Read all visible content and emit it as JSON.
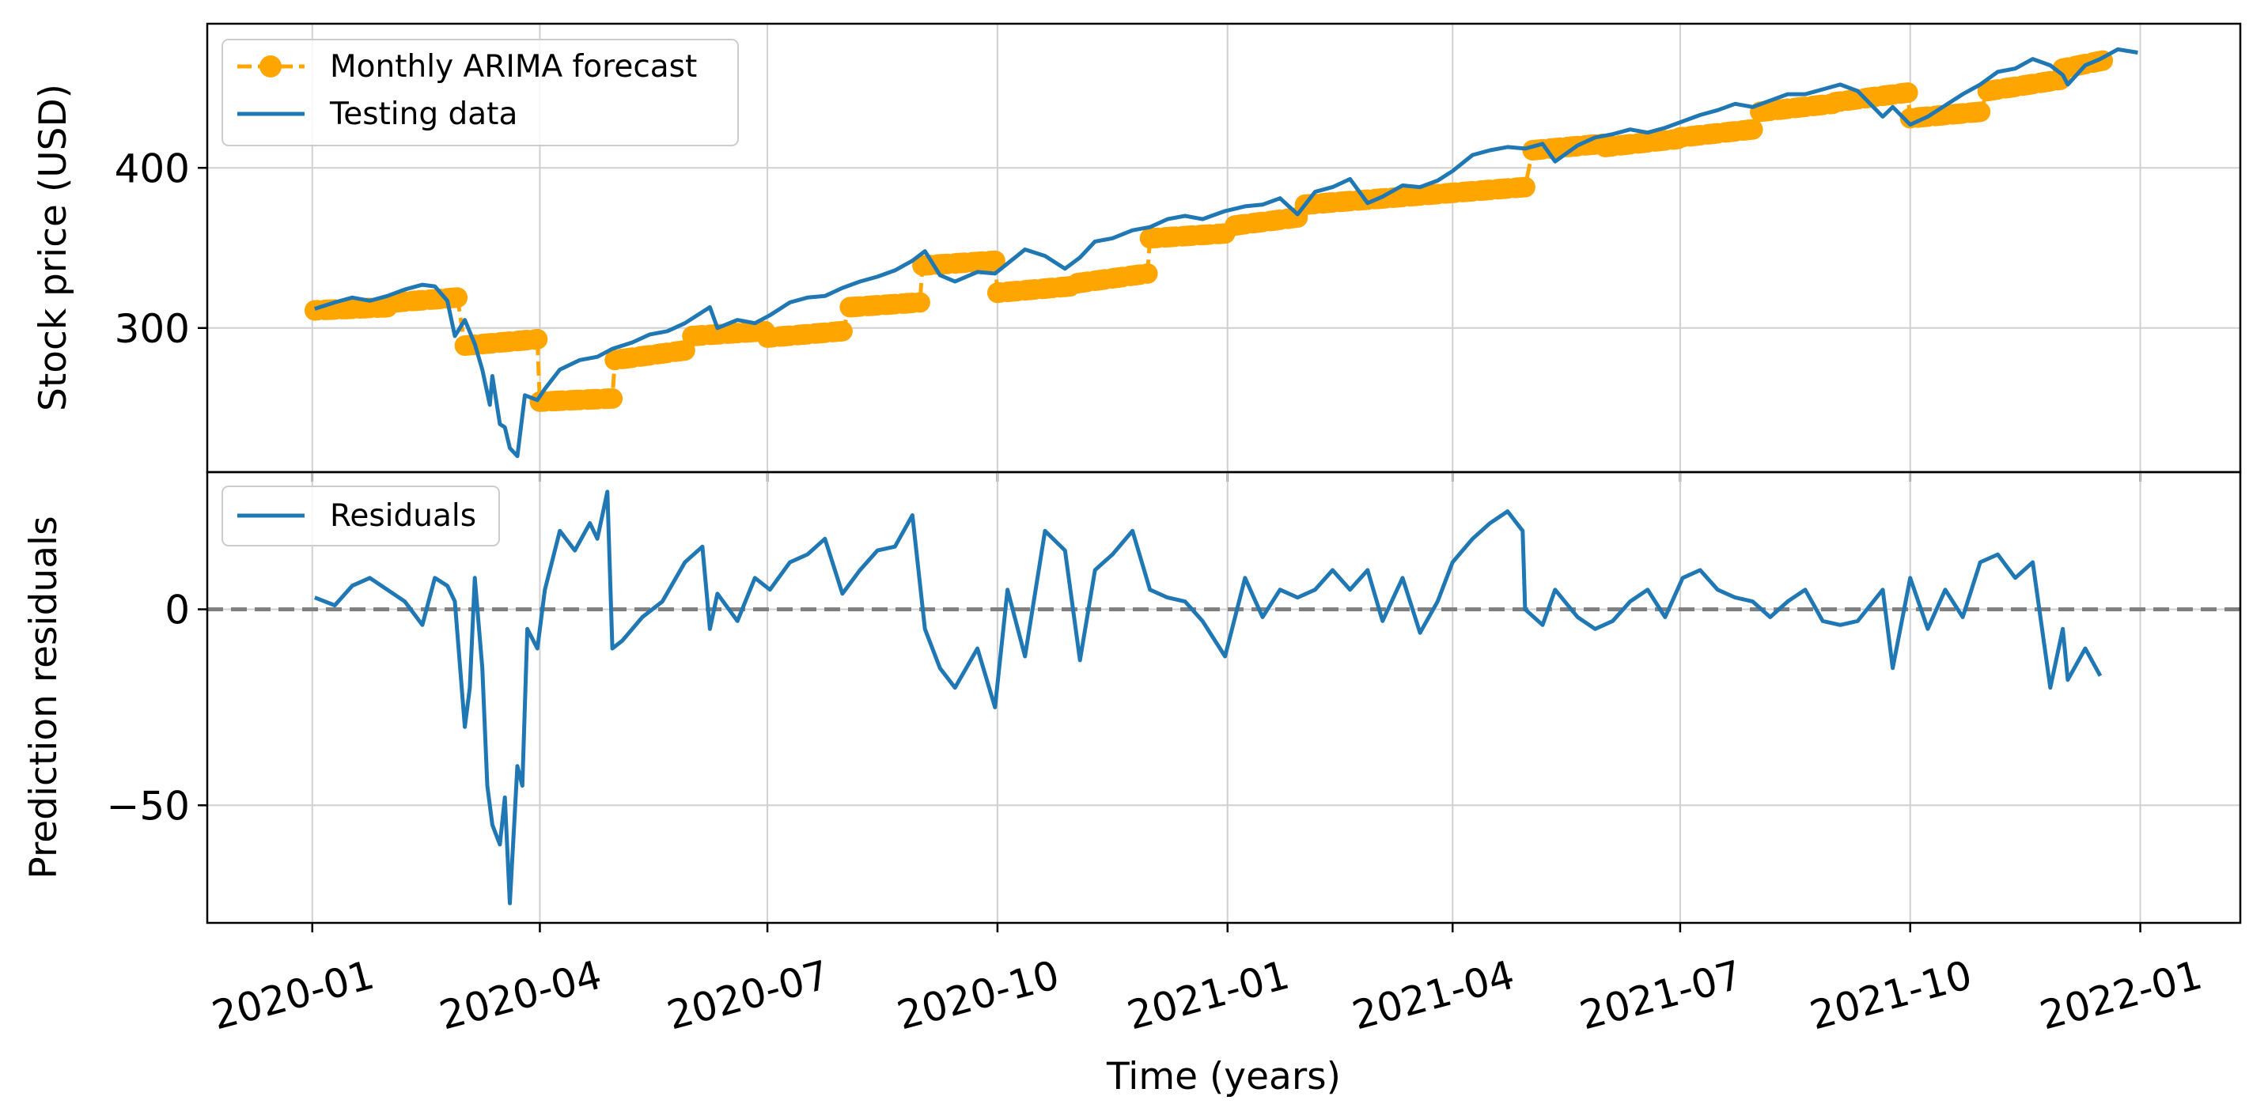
{
  "chart_data": [
    {
      "type": "line",
      "xlabel": "",
      "ylabel": "Stock price (USD)",
      "ylim": [
        210,
        490
      ],
      "y_ticks": [
        "300",
        "400"
      ],
      "x_range": [
        "2019-11-20",
        "2022-02-10"
      ],
      "grid": true,
      "legend": "top-left",
      "series": [
        {
          "name": "Monthly ARIMA forecast",
          "style": "dashed-with-circle-markers",
          "color": "#ffa500",
          "segments": [
            {
              "x": [
                "2020-01-02",
                "2020-01-31"
              ],
              "y": [
                311,
                313
              ]
            },
            {
              "x": [
                "2020-02-03",
                "2020-02-28"
              ],
              "y": [
                316,
                319
              ]
            },
            {
              "x": [
                "2020-03-02",
                "2020-03-31"
              ],
              "y": [
                289,
                293
              ]
            },
            {
              "x": [
                "2020-04-01",
                "2020-04-30"
              ],
              "y": [
                254,
                256
              ]
            },
            {
              "x": [
                "2020-05-01",
                "2020-05-29"
              ],
              "y": [
                280,
                286
              ]
            },
            {
              "x": [
                "2020-06-01",
                "2020-06-30"
              ],
              "y": [
                295,
                298
              ]
            },
            {
              "x": [
                "2020-07-01",
                "2020-07-31"
              ],
              "y": [
                294,
                298
              ]
            },
            {
              "x": [
                "2020-08-03",
                "2020-08-31"
              ],
              "y": [
                313,
                316
              ]
            },
            {
              "x": [
                "2020-09-01",
                "2020-09-30"
              ],
              "y": [
                339,
                342
              ]
            },
            {
              "x": [
                "2020-10-01",
                "2020-10-30"
              ],
              "y": [
                322,
                326
              ]
            },
            {
              "x": [
                "2020-11-02",
                "2020-11-30"
              ],
              "y": [
                328,
                334
              ]
            },
            {
              "x": [
                "2020-12-01",
                "2020-12-31"
              ],
              "y": [
                356,
                359
              ]
            },
            {
              "x": [
                "2021-01-04",
                "2021-01-29"
              ],
              "y": [
                364,
                369
              ]
            },
            {
              "x": [
                "2021-02-01",
                "2021-04-30"
              ],
              "y": [
                377,
                388
              ]
            },
            {
              "x": [
                "2021-05-03",
                "2021-05-31"
              ],
              "y": [
                411,
                415
              ]
            },
            {
              "x": [
                "2021-06-01",
                "2021-06-30"
              ],
              "y": [
                413,
                418
              ]
            },
            {
              "x": [
                "2021-07-01",
                "2021-07-30"
              ],
              "y": [
                419,
                424
              ]
            },
            {
              "x": [
                "2021-08-02",
                "2021-08-31"
              ],
              "y": [
                435,
                440
              ]
            },
            {
              "x": [
                "2021-09-01",
                "2021-09-30"
              ],
              "y": [
                441,
                447
              ]
            },
            {
              "x": [
                "2021-10-01",
                "2021-10-29"
              ],
              "y": [
                431,
                435
              ]
            },
            {
              "x": [
                "2021-11-01",
                "2021-11-30"
              ],
              "y": [
                448,
                455
              ]
            },
            {
              "x": [
                "2021-12-01",
                "2021-12-17"
              ],
              "y": [
                462,
                467
              ]
            }
          ]
        },
        {
          "name": "Testing data",
          "style": "solid",
          "color": "#1f77b4",
          "x": [
            "2020-01-02",
            "2020-01-10",
            "2020-01-17",
            "2020-01-24",
            "2020-01-31",
            "2020-02-07",
            "2020-02-14",
            "2020-02-19",
            "2020-02-24",
            "2020-02-27",
            "2020-03-02",
            "2020-03-06",
            "2020-03-09",
            "2020-03-12",
            "2020-03-13",
            "2020-03-16",
            "2020-03-18",
            "2020-03-20",
            "2020-03-23",
            "2020-03-26",
            "2020-03-31",
            "2020-04-03",
            "2020-04-09",
            "2020-04-17",
            "2020-04-24",
            "2020-04-30",
            "2020-05-08",
            "2020-05-15",
            "2020-05-22",
            "2020-05-29",
            "2020-06-05",
            "2020-06-08",
            "2020-06-11",
            "2020-06-19",
            "2020-06-26",
            "2020-07-02",
            "2020-07-10",
            "2020-07-17",
            "2020-07-24",
            "2020-07-31",
            "2020-08-07",
            "2020-08-14",
            "2020-08-21",
            "2020-08-28",
            "2020-09-02",
            "2020-09-08",
            "2020-09-14",
            "2020-09-23",
            "2020-09-30",
            "2020-10-12",
            "2020-10-20",
            "2020-10-28",
            "2020-11-03",
            "2020-11-09",
            "2020-11-16",
            "2020-11-24",
            "2020-12-01",
            "2020-12-08",
            "2020-12-15",
            "2020-12-22",
            "2020-12-31",
            "2021-01-08",
            "2021-01-15",
            "2021-01-22",
            "2021-01-29",
            "2021-02-05",
            "2021-02-12",
            "2021-02-19",
            "2021-02-26",
            "2021-03-04",
            "2021-03-12",
            "2021-03-19",
            "2021-03-26",
            "2021-04-01",
            "2021-04-09",
            "2021-04-16",
            "2021-04-23",
            "2021-04-30",
            "2021-05-07",
            "2021-05-12",
            "2021-05-21",
            "2021-05-28",
            "2021-06-04",
            "2021-06-11",
            "2021-06-18",
            "2021-06-25",
            "2021-07-02",
            "2021-07-09",
            "2021-07-16",
            "2021-07-23",
            "2021-07-30",
            "2021-08-06",
            "2021-08-13",
            "2021-08-20",
            "2021-08-27",
            "2021-09-03",
            "2021-09-10",
            "2021-09-20",
            "2021-09-24",
            "2021-10-01",
            "2021-10-08",
            "2021-10-15",
            "2021-10-22",
            "2021-10-29",
            "2021-11-05",
            "2021-11-12",
            "2021-11-19",
            "2021-11-26",
            "2021-12-01",
            "2021-12-03",
            "2021-12-10",
            "2021-12-16",
            "2021-12-23",
            "2021-12-31"
          ],
          "y": [
            312,
            316,
            319,
            317,
            320,
            324,
            327,
            326,
            317,
            295,
            305,
            290,
            274,
            252,
            270,
            240,
            238,
            225,
            220,
            258,
            255,
            262,
            274,
            280,
            282,
            287,
            291,
            296,
            298,
            303,
            310,
            313,
            300,
            305,
            303,
            308,
            316,
            319,
            320,
            325,
            329,
            332,
            336,
            342,
            348,
            333,
            329,
            335,
            334,
            349,
            345,
            337,
            344,
            354,
            356,
            361,
            363,
            368,
            370,
            368,
            373,
            376,
            377,
            381,
            371,
            385,
            388,
            393,
            378,
            382,
            389,
            388,
            392,
            398,
            408,
            411,
            413,
            412,
            415,
            404,
            414,
            419,
            421,
            424,
            422,
            425,
            429,
            433,
            436,
            440,
            438,
            442,
            446,
            446,
            449,
            452,
            448,
            432,
            438,
            427,
            432,
            439,
            446,
            452,
            460,
            462,
            468,
            464,
            458,
            452,
            464,
            468,
            474,
            472
          ]
        }
      ]
    },
    {
      "type": "line",
      "xlabel": "Time (years)",
      "ylabel": "Prediction residuals",
      "ylim": [
        -80,
        35
      ],
      "y_ticks": [
        "−50",
        "0"
      ],
      "x_ticks": [
        "2020-01",
        "2020-04",
        "2020-07",
        "2020-10",
        "2021-01",
        "2021-04",
        "2021-07",
        "2021-10",
        "2022-01"
      ],
      "x_range": [
        "2019-11-20",
        "2022-02-10"
      ],
      "grid": true,
      "legend": "top-left",
      "reference_line": {
        "y": 0,
        "style": "dashed",
        "color": "#808080"
      },
      "series": [
        {
          "name": "Residuals",
          "color": "#1f77b4",
          "x": [
            "2020-01-02",
            "2020-01-10",
            "2020-01-17",
            "2020-01-24",
            "2020-01-31",
            "2020-02-07",
            "2020-02-14",
            "2020-02-19",
            "2020-02-24",
            "2020-02-27",
            "2020-03-02",
            "2020-03-04",
            "2020-03-06",
            "2020-03-09",
            "2020-03-11",
            "2020-03-13",
            "2020-03-16",
            "2020-03-18",
            "2020-03-20",
            "2020-03-23",
            "2020-03-25",
            "2020-03-27",
            "2020-03-31",
            "2020-04-03",
            "2020-04-09",
            "2020-04-15",
            "2020-04-21",
            "2020-04-24",
            "2020-04-28",
            "2020-04-30",
            "2020-05-04",
            "2020-05-12",
            "2020-05-20",
            "2020-05-29",
            "2020-06-05",
            "2020-06-08",
            "2020-06-11",
            "2020-06-19",
            "2020-06-26",
            "2020-07-02",
            "2020-07-10",
            "2020-07-17",
            "2020-07-24",
            "2020-07-31",
            "2020-08-07",
            "2020-08-14",
            "2020-08-21",
            "2020-08-28",
            "2020-09-02",
            "2020-09-08",
            "2020-09-14",
            "2020-09-23",
            "2020-09-30",
            "2020-10-05",
            "2020-10-12",
            "2020-10-20",
            "2020-10-28",
            "2020-11-03",
            "2020-11-09",
            "2020-11-16",
            "2020-11-24",
            "2020-12-01",
            "2020-12-08",
            "2020-12-15",
            "2020-12-22",
            "2020-12-31",
            "2021-01-08",
            "2021-01-15",
            "2021-01-22",
            "2021-01-29",
            "2021-02-05",
            "2021-02-12",
            "2021-02-19",
            "2021-02-26",
            "2021-03-04",
            "2021-03-12",
            "2021-03-19",
            "2021-03-26",
            "2021-04-01",
            "2021-04-09",
            "2021-04-16",
            "2021-04-23",
            "2021-04-29",
            "2021-04-30",
            "2021-05-07",
            "2021-05-12",
            "2021-05-21",
            "2021-05-28",
            "2021-06-04",
            "2021-06-11",
            "2021-06-18",
            "2021-06-25",
            "2021-07-02",
            "2021-07-09",
            "2021-07-16",
            "2021-07-23",
            "2021-07-30",
            "2021-08-06",
            "2021-08-13",
            "2021-08-20",
            "2021-08-27",
            "2021-09-03",
            "2021-09-10",
            "2021-09-20",
            "2021-09-24",
            "2021-10-01",
            "2021-10-08",
            "2021-10-15",
            "2021-10-22",
            "2021-10-29",
            "2021-11-05",
            "2021-11-12",
            "2021-11-19",
            "2021-11-26",
            "2021-12-01",
            "2021-12-03",
            "2021-12-10",
            "2021-12-16"
          ],
          "y": [
            3,
            1,
            6,
            8,
            5,
            2,
            -4,
            8,
            6,
            2,
            -30,
            -20,
            8,
            -15,
            -45,
            -55,
            -60,
            -48,
            -75,
            -40,
            -45,
            -5,
            -10,
            5,
            20,
            15,
            22,
            18,
            30,
            -10,
            -8,
            -2,
            2,
            12,
            16,
            -5,
            4,
            -3,
            8,
            5,
            12,
            14,
            18,
            4,
            10,
            15,
            16,
            24,
            -5,
            -15,
            -20,
            -10,
            -25,
            5,
            -12,
            20,
            15,
            -13,
            10,
            14,
            20,
            5,
            3,
            2,
            -3,
            -12,
            8,
            -2,
            5,
            3,
            5,
            10,
            5,
            10,
            -3,
            8,
            -6,
            2,
            12,
            18,
            22,
            25,
            20,
            0,
            -4,
            5,
            -2,
            -5,
            -3,
            2,
            5,
            -2,
            8,
            10,
            5,
            3,
            2,
            -2,
            2,
            5,
            -3,
            -4,
            -3,
            5,
            -15,
            8,
            -5,
            5,
            -2,
            12,
            14,
            8,
            12,
            -20,
            -5,
            -18,
            -10,
            -17
          ]
        }
      ]
    }
  ]
}
